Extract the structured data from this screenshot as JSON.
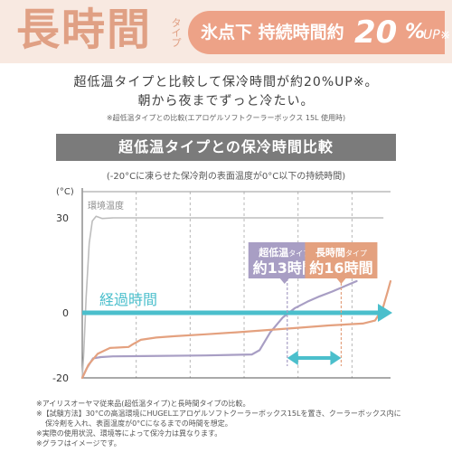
{
  "header": {
    "title": "長時間",
    "title_ruby": "タイプ",
    "tag_text": "氷点下 持続時間約",
    "tag_number": "20",
    "tag_percent": "%",
    "tag_up": "UP",
    "tag_mark": "※"
  },
  "lead_lines": [
    "超低温タイプと比較して保冷時間が約20%UP※。",
    "朝から夜までずっと冷たい。"
  ],
  "top_note": "※超低温タイプとの比較(エアロゲルソフトクーラーボックス 15L 使用時)",
  "section_title": "超低温タイプとの保冷時間比較",
  "subcaption": "(-20°Cに凍らせた保冷剤の表面温度が0°C以下の持続時間)",
  "footnotes": [
    "※アイリスオーヤマ従来品(超低温タイプ)と長時間タイプの比較。",
    "※【試験方法】30°Cの高温環境にHUGELエアロゲルソフトクーラーボックス15Lを置き、クーラーボックス内に",
    "保冷剤を入れ、表面温度が0°Cになるまでの時間を想定。",
    "※実際の使用状況、環境等によって保冷力は異なります。",
    "※グラフはイメージです。"
  ],
  "chart_data": {
    "type": "line",
    "title": "超低温タイプとの保冷時間比較",
    "subtitle": "(-20°Cに凍らせた保冷剤の表面温度が0°C以下の持続時間)",
    "ylabel": "(°C)",
    "xlabel": "経過時間",
    "ylim": [
      -20,
      36
    ],
    "xlim": [
      0,
      20
    ],
    "y_ticks": [
      30,
      0,
      -20
    ],
    "x_grid": [
      3.5,
      7,
      10.5,
      14,
      17.5
    ],
    "grid": true,
    "colors": {
      "ambient": "#bdbdbd",
      "ultra_low": "#a89ec4",
      "long": "#e4a17f",
      "arrow": "#4bbfcc",
      "axis": "#555555"
    },
    "series": [
      {
        "name": "環境温度",
        "color": "#bdbdbd",
        "x": [
          0,
          0.1,
          0.25,
          0.45,
          0.65,
          0.9,
          1.3,
          2,
          19.5
        ],
        "y": [
          -20,
          -12,
          5,
          22,
          29,
          30.5,
          29.8,
          30,
          30
        ]
      },
      {
        "name": "超低温タイプ",
        "color": "#a89ec4",
        "x": [
          0,
          0.3,
          0.7,
          1.2,
          2,
          4,
          8,
          11,
          11.5,
          12.2,
          13,
          13.8,
          14.6,
          15.4,
          16.2,
          17.8
        ],
        "y": [
          -20,
          -17,
          -14,
          -13.6,
          -13.4,
          -13.3,
          -13.1,
          -12.8,
          -11.5,
          -6,
          -1.5,
          1.5,
          3.5,
          5.2,
          6.7,
          10
        ]
      },
      {
        "name": "長時間タイプ",
        "color": "#e4a17f",
        "x": [
          0,
          0.4,
          1,
          1.8,
          3,
          3.3,
          3.8,
          4.8,
          6,
          8,
          10,
          12,
          14,
          16,
          18.2,
          19,
          19.5,
          19.8,
          20
        ],
        "y": [
          -20,
          -16,
          -12.6,
          -10.8,
          -10.5,
          -9.6,
          -8.3,
          -7.6,
          -7.2,
          -6.6,
          -6,
          -5.3,
          -4.6,
          -3.9,
          -3.3,
          -2.4,
          1.5,
          6.5,
          10
        ]
      }
    ],
    "annotations": [
      {
        "label_prefix": "超低温",
        "label_suffix": "タイプ",
        "label_big": "約13時間",
        "at_x": 13.3,
        "series": "超低温タイプ"
      },
      {
        "label_prefix": "長時間",
        "label_suffix": "タイプ",
        "label_big": "約16時間",
        "at_x": 16.8,
        "series": "長時間タイプ"
      }
    ],
    "difference_range": [
      13.3,
      16.8
    ]
  }
}
